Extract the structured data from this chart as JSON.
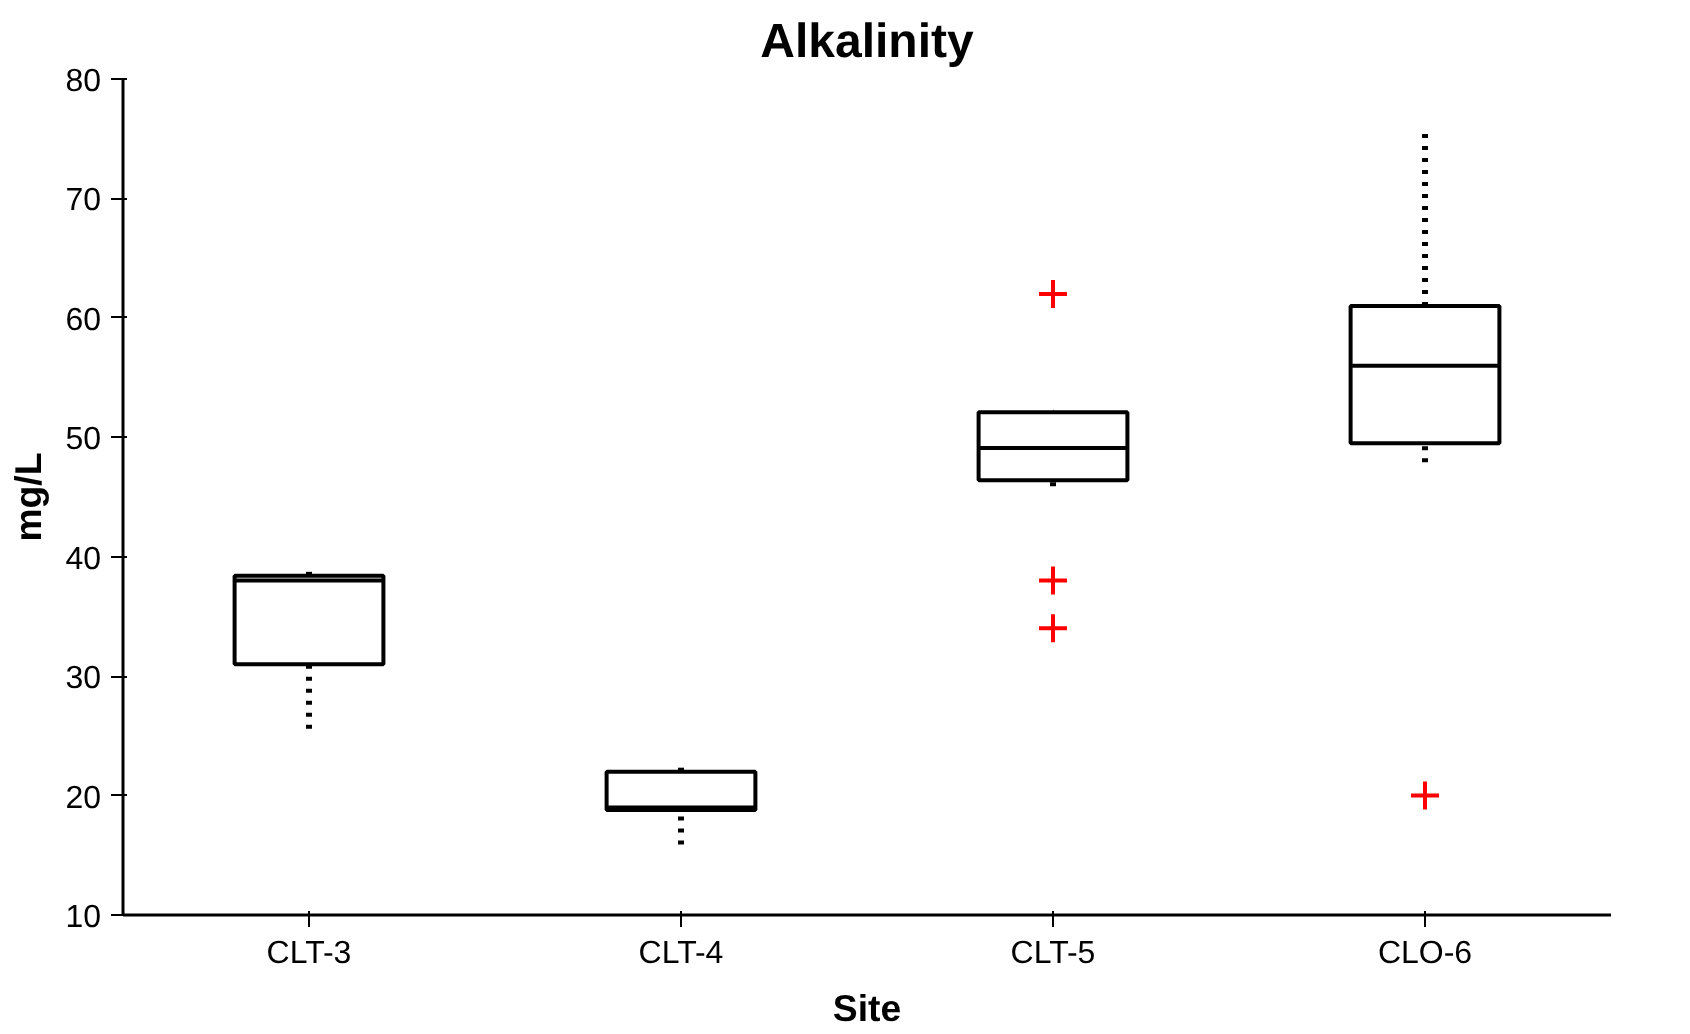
{
  "chart_data": {
    "type": "box",
    "title": "Alkalinity",
    "xlabel": "Site",
    "ylabel": "mg/L",
    "categories": [
      "CLT-3",
      "CLT-4",
      "CLT-5",
      "CLO-6"
    ],
    "ylim": [
      10,
      80
    ],
    "yticks": [
      10,
      20,
      30,
      40,
      50,
      60,
      70,
      80
    ],
    "grid": false,
    "line_style": "dotted",
    "series": [
      {
        "color": "#000000",
        "boxes": [
          {
            "low": 25.6,
            "q1": 31,
            "median": 38,
            "q3": 38.4,
            "high": 39.1
          },
          {
            "low": 15.9,
            "q1": 18.8,
            "median": 19,
            "q3": 22,
            "high": 22.7
          },
          {
            "low": 45.9,
            "q1": 46.4,
            "median": 49.1,
            "q3": 52.1,
            "high": 52.1
          },
          {
            "low": 47.9,
            "q1": 49.5,
            "median": 56,
            "q3": 61,
            "high": 75.5
          }
        ]
      },
      {
        "type": "scatter",
        "marker": "cross",
        "color": "#ff0000",
        "x": [
          "CLT-5",
          "CLT-5",
          "CLT-5",
          "CLO-6"
        ],
        "values": [
          62,
          38,
          34,
          20
        ]
      }
    ]
  }
}
